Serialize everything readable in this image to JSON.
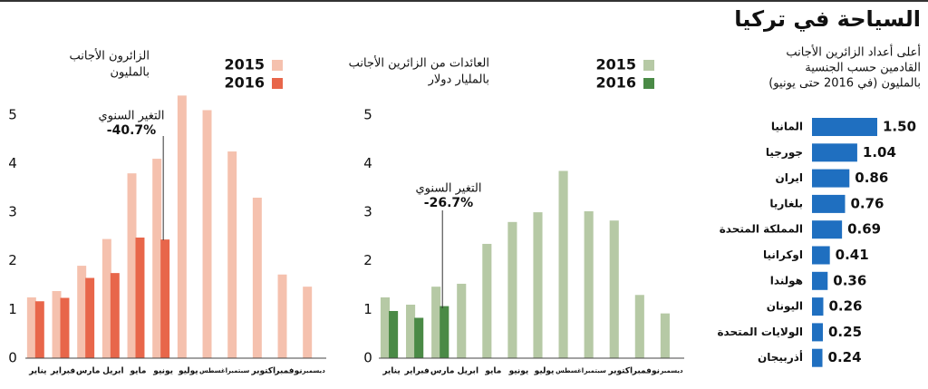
{
  "header": {
    "title": "السياحة في تركيا"
  },
  "chart_data": [
    {
      "type": "bar",
      "title": [
        "الزائرون الأجانب",
        "بالمليون"
      ],
      "categories": [
        "يناير",
        "فبراير",
        "مارس",
        "ابريل",
        "مايو",
        "يونيو",
        "يوليو",
        "اغسطس",
        "سبتمبر",
        "اكتوبر",
        "نوفمبر",
        "ديسمبر"
      ],
      "series": [
        {
          "name": "2015",
          "color": "#f5c1ae",
          "values": [
            1.25,
            1.38,
            1.9,
            2.45,
            3.8,
            4.1,
            5.4,
            5.1,
            4.25,
            3.3,
            1.72,
            1.47
          ]
        },
        {
          "name": "2016",
          "color": "#e8664a",
          "values": [
            1.17,
            1.24,
            1.65,
            1.75,
            2.48,
            2.44,
            null,
            null,
            null,
            null,
            null,
            null
          ]
        }
      ],
      "ylim": [
        0,
        5.5
      ],
      "yticks": [
        0,
        1,
        2,
        3,
        4,
        5
      ],
      "annotation": [
        "التغير السنوي",
        "-40.7%"
      ]
    },
    {
      "type": "bar",
      "title": [
        "العائدات من الزائرين الأجانب",
        "بالمليار دولار"
      ],
      "categories": [
        "يناير",
        "فبراير",
        "مارس",
        "ابريل",
        "مايو",
        "يونيو",
        "يوليو",
        "اغسطس",
        "سبتمبر",
        "اكتوبر",
        "نوفمبر",
        "ديسمبر"
      ],
      "series": [
        {
          "name": "2015",
          "color": "#b6c9a5",
          "values": [
            1.25,
            1.1,
            1.47,
            1.53,
            2.35,
            2.8,
            3.0,
            3.85,
            3.02,
            2.83,
            1.3,
            0.92
          ]
        },
        {
          "name": "2016",
          "color": "#4a8a46",
          "values": [
            0.97,
            0.83,
            1.07,
            null,
            null,
            null,
            null,
            null,
            null,
            null,
            null,
            null
          ]
        }
      ],
      "ylim": [
        0,
        5.5
      ],
      "yticks": [
        0,
        1,
        2,
        3,
        4,
        5
      ],
      "annotation": [
        "التغير السنوي",
        "-26.7%"
      ]
    },
    {
      "type": "barh",
      "title": [
        "أعلى أعداد الزائرين الأجانب",
        "القادمين حسب الجنسية",
        "بالمليون (في 2016 حتى يونيو)"
      ],
      "categories": [
        "المانيا",
        "جورجيا",
        "ايران",
        "بلغاريا",
        "المملكة المتحدة",
        "اوكرانيا",
        "هولندا",
        "اليونان",
        "الولايات المتحدة",
        "أذربيجان"
      ],
      "values": [
        1.5,
        1.04,
        0.86,
        0.76,
        0.69,
        0.41,
        0.36,
        0.26,
        0.25,
        0.24
      ],
      "value_labels": [
        "1.50",
        "1.04",
        "0.86",
        "0.76",
        "0.69",
        "0.41",
        "0.36",
        "0.26",
        "0.25",
        "0.24"
      ],
      "color": "#1f6fc0"
    }
  ]
}
